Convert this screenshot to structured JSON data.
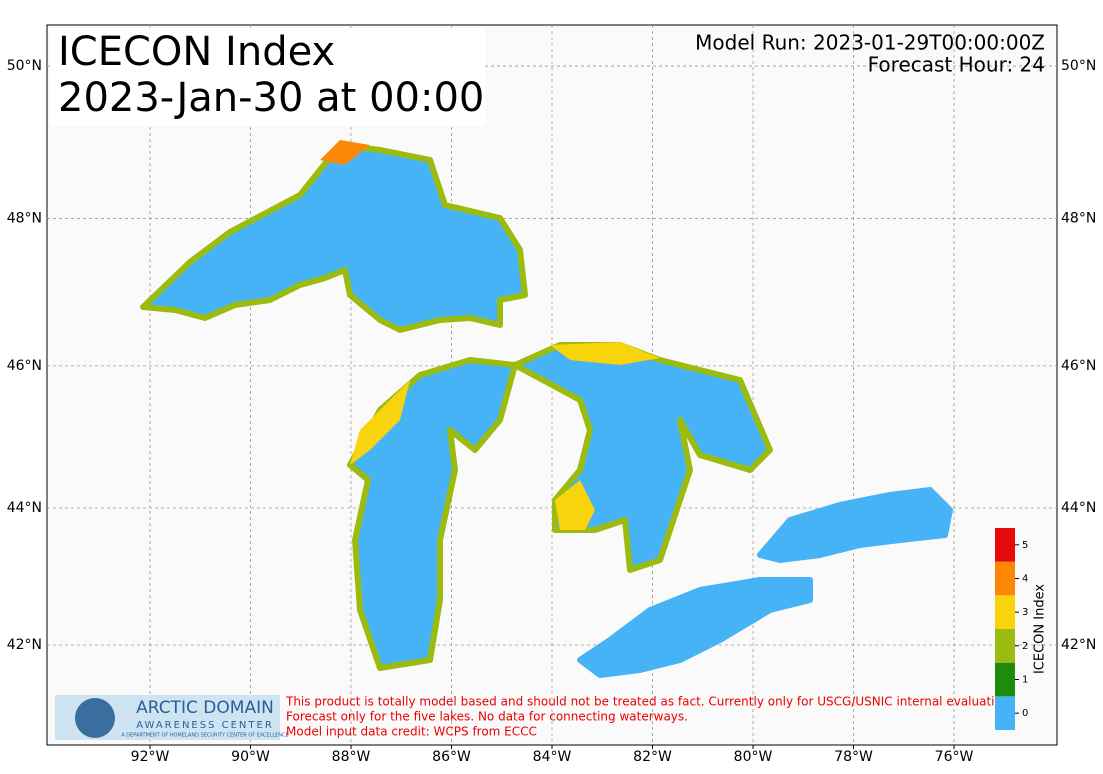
{
  "map": {
    "title": "ICECON Index",
    "subtitle": "2023-Jan-30 at 00:00",
    "model_run": "Model Run: 2023-01-29T00:00:00Z",
    "forecast_hour": "Forecast Hour: 24",
    "lon_ticks": [
      {
        "value": -92,
        "label": "92°W"
      },
      {
        "value": -90,
        "label": "90°W"
      },
      {
        "value": -88,
        "label": "88°W"
      },
      {
        "value": -86,
        "label": "86°W"
      },
      {
        "value": -84,
        "label": "84°W"
      },
      {
        "value": -82,
        "label": "82°W"
      },
      {
        "value": -80,
        "label": "80°W"
      },
      {
        "value": -78,
        "label": "78°W"
      },
      {
        "value": -76,
        "label": "76°W"
      }
    ],
    "lat_ticks": [
      {
        "value": 42,
        "label": "42°N"
      },
      {
        "value": 44,
        "label": "44°N"
      },
      {
        "value": 46,
        "label": "46°N"
      },
      {
        "value": 48,
        "label": "48°N"
      },
      {
        "value": 50,
        "label": "50°N"
      }
    ],
    "colorbar": {
      "label": "ICECON Index",
      "levels": [
        0,
        1,
        2,
        3,
        4,
        5
      ],
      "colors": [
        "#45b3f5",
        "#1e8a0e",
        "#9bbb0e",
        "#f9d30c",
        "#fc8705",
        "#e60a0a"
      ]
    },
    "logo": {
      "name": "ARCTIC DOMAIN",
      "subname": "AWARENESS CENTER",
      "tagline": "A DEPARTMENT OF HOMELAND SECURITY CENTER OF EXCELLENCE"
    },
    "disclaimer": [
      "This product is totally model based and should not be treated as fact. Currently only for USCG/USNIC internal evaluation.",
      "Forecast only for the five lakes. No data for connecting waterways.",
      "Model input data credit: WCPS from ECCC"
    ]
  }
}
